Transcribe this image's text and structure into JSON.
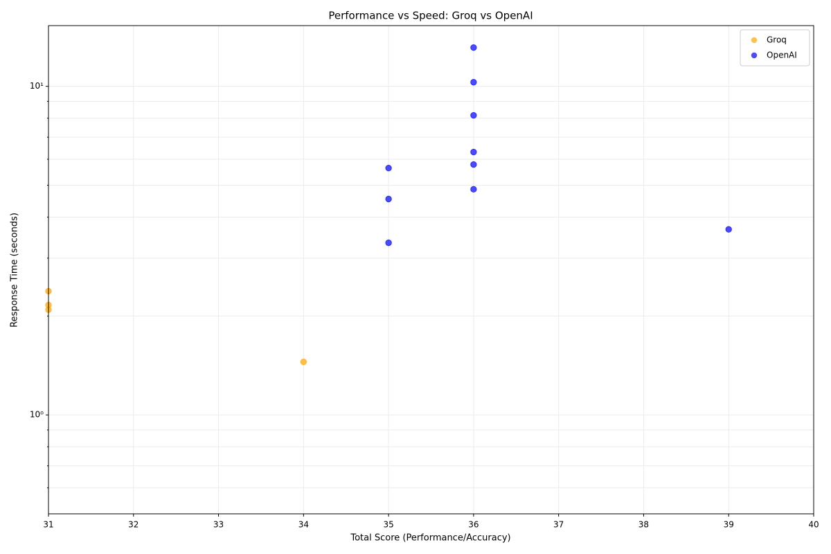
{
  "chart_data": {
    "type": "scatter",
    "title": "Performance vs Speed: Groq vs OpenAI",
    "x_label": "Total Score (Performance/Accuracy)",
    "y_label": "Response Time (seconds)",
    "xlim": [
      31,
      40
    ],
    "xticks": [
      31,
      32,
      33,
      34,
      35,
      36,
      37,
      38,
      39,
      40
    ],
    "ylim": [
      0.5,
      15.3
    ],
    "y_scale": "log",
    "yticks": [
      {
        "value": 1,
        "label": "10⁰"
      },
      {
        "value": 10,
        "label": "10¹"
      }
    ],
    "y_minor_ticks": [
      0.6,
      0.7,
      0.8,
      0.9,
      2,
      3,
      4,
      5,
      6,
      7,
      8,
      9
    ],
    "grid": true,
    "legend": "upper right",
    "series": [
      {
        "name": "Groq",
        "color": "orange",
        "x": [
          31,
          31,
          31,
          34
        ],
        "y": [
          2.38,
          2.16,
          2.09,
          1.45
        ]
      },
      {
        "name": "OpenAI",
        "color": "blue",
        "x": [
          36,
          36,
          36,
          36,
          36,
          36,
          35,
          35,
          35,
          39
        ],
        "y": [
          13.12,
          10.29,
          8.16,
          6.31,
          5.78,
          4.86,
          5.64,
          4.54,
          3.34,
          3.67
        ]
      }
    ]
  }
}
